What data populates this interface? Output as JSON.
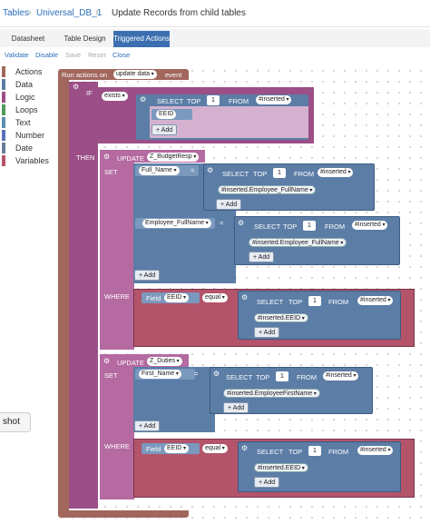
{
  "breadcrumb": {
    "tables": "Tables",
    "database": "Universal_DB_1",
    "title": "Update Records from child tables"
  },
  "tabs": [
    {
      "label": "Datasheet"
    },
    {
      "label": "Table Design"
    },
    {
      "label": "Triggered Actions"
    }
  ],
  "toolbar": {
    "validate": "Validate",
    "disable": "Disable",
    "save": "Save",
    "reset": "Reset",
    "close": "Close"
  },
  "toolbox": [
    {
      "label": "Actions",
      "color": "#a1675d"
    },
    {
      "label": "Data",
      "color": "#5b7da6"
    },
    {
      "label": "Logic",
      "color": "#9b4f86"
    },
    {
      "label": "Loops",
      "color": "#4f9a59"
    },
    {
      "label": "Text",
      "color": "#5c8fb3"
    },
    {
      "label": "Number",
      "color": "#5a6fb5"
    },
    {
      "label": "Date",
      "color": "#6b7b9a"
    },
    {
      "label": "Variables",
      "color": "#b3546b"
    }
  ],
  "hint": "shot",
  "blocks": {
    "run_prefix": "Run actions on",
    "run_event": "update data",
    "run_suffix": "event",
    "if_label": "IF",
    "then_label": "THEN",
    "exists": "exists",
    "select": "SELECT",
    "top": "TOP",
    "from": "FROM",
    "one": "1",
    "inserted": "#inserted",
    "eeid": "EEID",
    "add": "+ Add",
    "update1": {
      "keyword": "UPDATE",
      "table": "Z_BudgetResp"
    },
    "set": "SET",
    "where": "WHERE",
    "full_name": "Full_Name",
    "eq": "=",
    "inserted_employee_fullname": "#inserted.Employee_FullName",
    "employee_fullname": "Employee_FullName",
    "inserted_employee_fullname2": "#inserted.Employee_FullName",
    "field": "Field",
    "equal": "equal",
    "inserted_eeid": "#inserted.EEID",
    "update2": {
      "keyword": "UPDATE",
      "table": "Z_Duties"
    },
    "first_name": "First_Name",
    "inserted_employeefirstname": "#inserted.EmployeeFirstName"
  }
}
